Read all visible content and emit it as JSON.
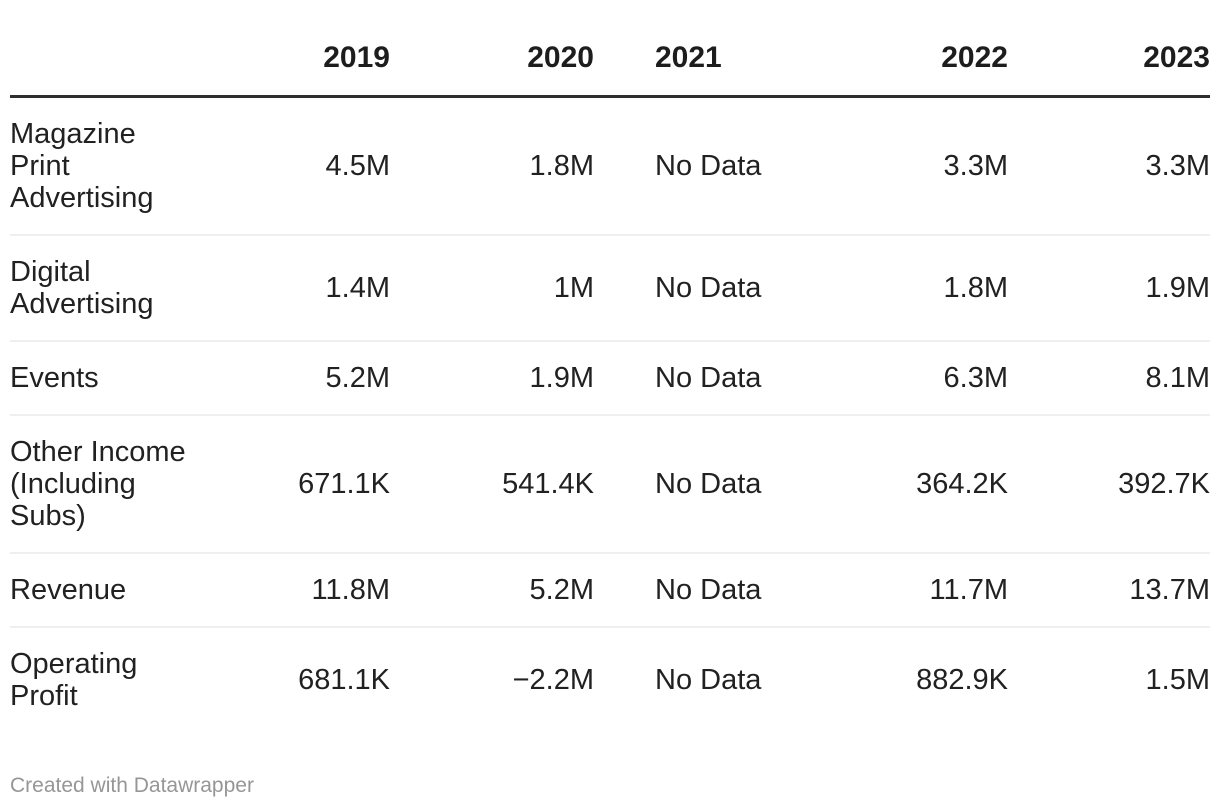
{
  "colors": {
    "background": "#ffffff",
    "text": "#212121",
    "header_text": "#1d1d1d",
    "header_rule": "#2e2e2e",
    "row_rule": "#efefef",
    "credit_text": "#969696"
  },
  "chart_data": {
    "type": "table",
    "title": "",
    "columns": [
      "",
      "2019",
      "2020",
      "2021",
      "2022",
      "2023"
    ],
    "rows": [
      {
        "label": "Magazine Print Advertising",
        "values": [
          "4.5M",
          "1.8M",
          "No Data",
          "3.3M",
          "3.3M"
        ]
      },
      {
        "label": "Digital Advertising",
        "values": [
          "1.4M",
          "1M",
          "No Data",
          "1.8M",
          "1.9M"
        ]
      },
      {
        "label": "Events",
        "values": [
          "5.2M",
          "1.9M",
          "No Data",
          "6.3M",
          "8.1M"
        ]
      },
      {
        "label": "Other Income (Including Subs)",
        "values": [
          "671.1K",
          "541.4K",
          "No Data",
          "364.2K",
          "392.7K"
        ]
      },
      {
        "label": "Revenue",
        "values": [
          "11.8M",
          "5.2M",
          "No Data",
          "11.7M",
          "13.7M"
        ]
      },
      {
        "label": "Operating Profit",
        "values": [
          "681.1K",
          "−2.2M",
          "No Data",
          "882.9K",
          "1.5M"
        ]
      }
    ]
  },
  "footer": {
    "credit": "Created with Datawrapper"
  }
}
